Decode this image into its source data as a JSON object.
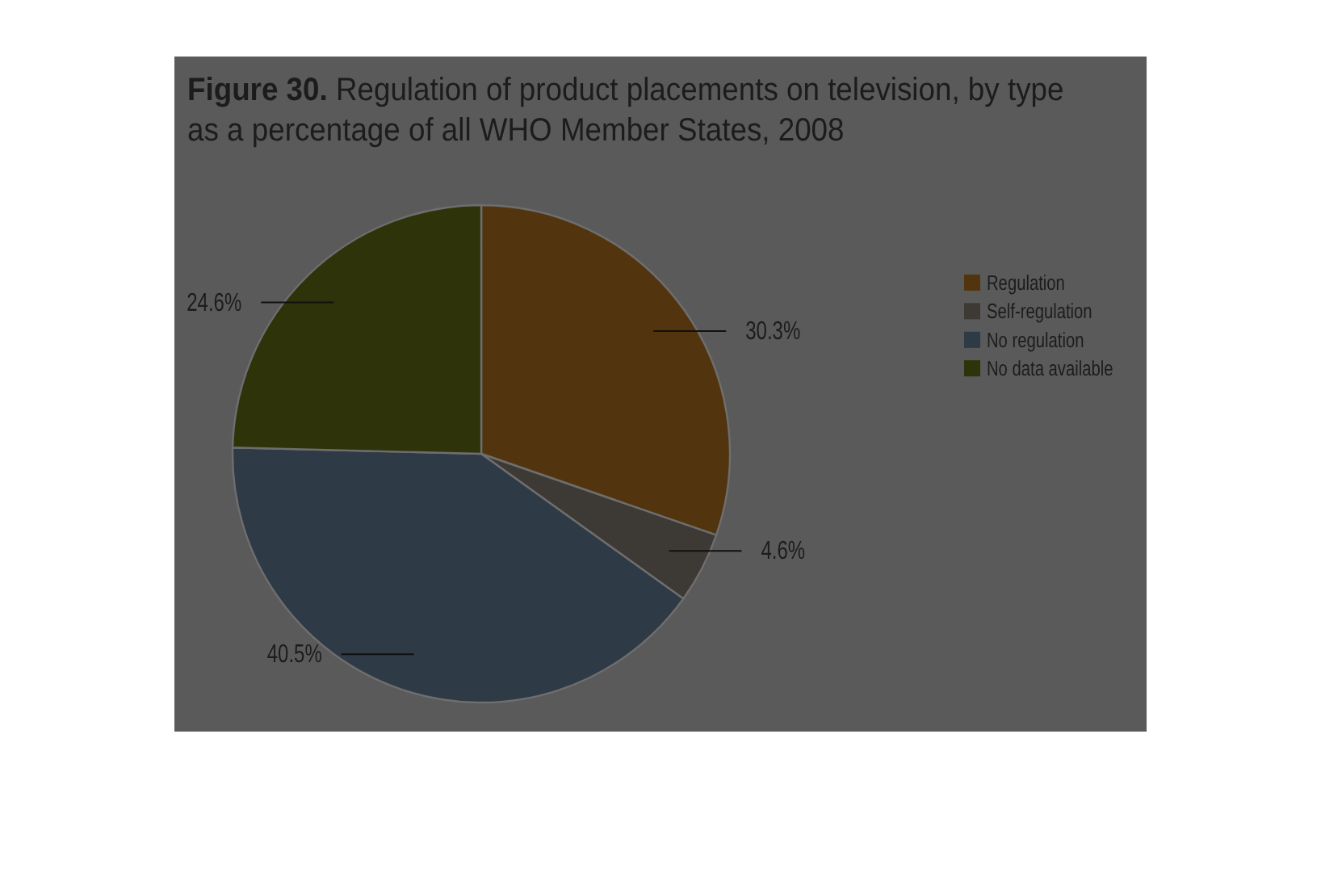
{
  "chart_data": {
    "type": "pie",
    "title": "Figure 30. Regulation of product placements on television, by type as a percentage of all WHO Member States, 2008",
    "categories": [
      "Regulation",
      "Self-regulation",
      "No regulation",
      "No data available"
    ],
    "values": [
      30.3,
      4.6,
      40.5,
      24.6
    ],
    "colors": [
      "#52350e",
      "#3d3935",
      "#2e3a45",
      "#2f330a"
    ],
    "value_labels": [
      "30.3%",
      "4.6%",
      "40.5%",
      "24.6%"
    ],
    "legend": "right"
  }
}
